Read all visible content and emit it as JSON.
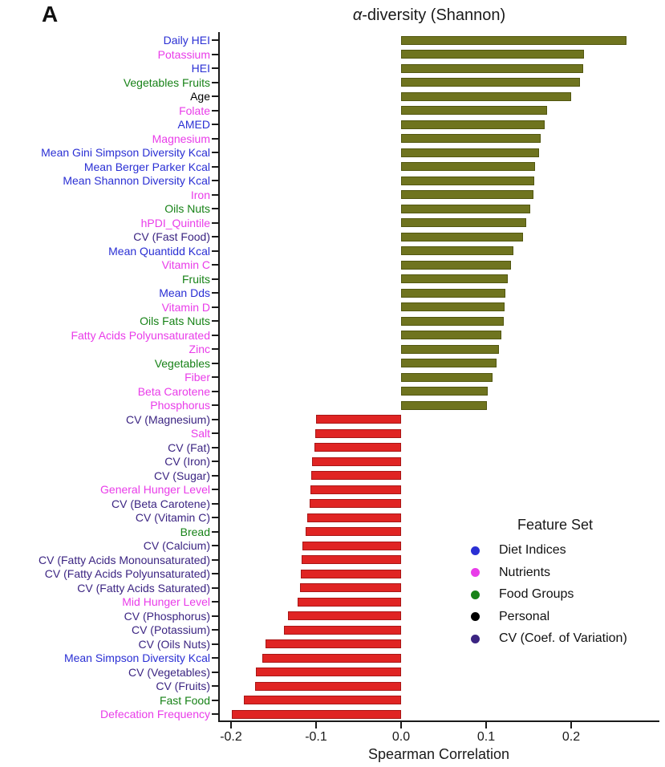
{
  "panel_label": "A",
  "title": {
    "alpha": "α",
    "rest": "-diversity (Shannon)"
  },
  "axis": {
    "x_label": "Spearman Correlation",
    "x_ticks": [
      {
        "label": "-0.2",
        "value": -0.2
      },
      {
        "label": "-0.1",
        "value": -0.1
      },
      {
        "label": "0.0",
        "value": 0.0
      },
      {
        "label": "0.1",
        "value": 0.1
      },
      {
        "label": "0.2",
        "value": 0.2
      }
    ]
  },
  "legend": {
    "title": "Feature Set",
    "items": [
      {
        "label": "Diet Indices",
        "color_key": "diet"
      },
      {
        "label": "Nutrients",
        "color_key": "nutrient"
      },
      {
        "label": "Food Groups",
        "color_key": "food"
      },
      {
        "label": "Personal",
        "color_key": "personal"
      },
      {
        "label": "CV (Coef. of Variation)",
        "color_key": "cv"
      }
    ]
  },
  "colors": {
    "diet": "#2a2fd4",
    "nutrient": "#e93ce9",
    "food": "#178217",
    "personal": "#000000",
    "cv": "#3b2482",
    "bar_positive": "#6f741f",
    "bar_negative": "#e02423"
  },
  "chart_data": {
    "type": "bar",
    "orientation": "horizontal",
    "title": "α-diversity (Shannon)",
    "xlabel": "Spearman Correlation",
    "xlim": [
      -0.25,
      0.3
    ],
    "grid": false,
    "legend_position": "right-bottom",
    "categories": [
      "Daily HEI",
      "Potassium",
      "HEI",
      "Vegetables Fruits",
      "Age",
      "Folate",
      "AMED",
      "Magnesium",
      "Mean Gini Simpson Diversity Kcal",
      "Mean Berger Parker Kcal",
      "Mean Shannon Diversity Kcal",
      "Iron",
      "Oils Nuts",
      "hPDI_Quintile",
      "CV (Fast Food)",
      "Mean Quantidd Kcal",
      "Vitamin C",
      "Fruits",
      "Mean Dds",
      "Vitamin D",
      "Oils Fats Nuts",
      "Fatty Acids Polyunsaturated",
      "Zinc",
      "Vegetables",
      "Fiber",
      "Beta Carotene",
      "Phosphorus",
      "CV (Magnesium)",
      "Salt",
      "CV (Fat)",
      "CV (Iron)",
      "CV (Sugar)",
      "General Hunger Level",
      "CV (Beta Carotene)",
      "CV (Vitamin C)",
      "Bread",
      "CV (Calcium)",
      "CV (Fatty Acids Monounsaturated)",
      "CV (Fatty Acids Polyunsaturated)",
      "CV (Fatty Acids Saturated)",
      "Mid Hunger Level",
      "CV (Phosphorus)",
      "CV (Potassium)",
      "CV (Oils Nuts)",
      "Mean Simpson Diversity Kcal",
      "CV (Vegetables)",
      "CV (Fruits)",
      "Fast Food",
      "Defecation Frequency"
    ],
    "values": [
      0.265,
      0.215,
      0.214,
      0.21,
      0.2,
      0.172,
      0.169,
      0.164,
      0.162,
      0.158,
      0.157,
      0.156,
      0.152,
      0.147,
      0.143,
      0.132,
      0.129,
      0.125,
      0.123,
      0.122,
      0.121,
      0.118,
      0.115,
      0.112,
      0.108,
      0.102,
      0.101,
      -0.1,
      -0.101,
      -0.102,
      -0.105,
      -0.106,
      -0.107,
      -0.108,
      -0.11,
      -0.112,
      -0.116,
      -0.117,
      -0.118,
      -0.119,
      -0.122,
      -0.133,
      -0.138,
      -0.159,
      -0.163,
      -0.171,
      -0.172,
      -0.185,
      -0.199
    ],
    "feature_set": [
      "diet",
      "nutrient",
      "diet",
      "food",
      "personal",
      "nutrient",
      "diet",
      "nutrient",
      "diet",
      "diet",
      "diet",
      "nutrient",
      "food",
      "nutrient",
      "cv",
      "diet",
      "nutrient",
      "food",
      "diet",
      "nutrient",
      "food",
      "nutrient",
      "nutrient",
      "food",
      "nutrient",
      "nutrient",
      "nutrient",
      "cv",
      "nutrient",
      "cv",
      "cv",
      "cv",
      "nutrient",
      "cv",
      "cv",
      "food",
      "cv",
      "cv",
      "cv",
      "cv",
      "nutrient",
      "cv",
      "cv",
      "cv",
      "diet",
      "cv",
      "cv",
      "food",
      "nutrient"
    ]
  }
}
